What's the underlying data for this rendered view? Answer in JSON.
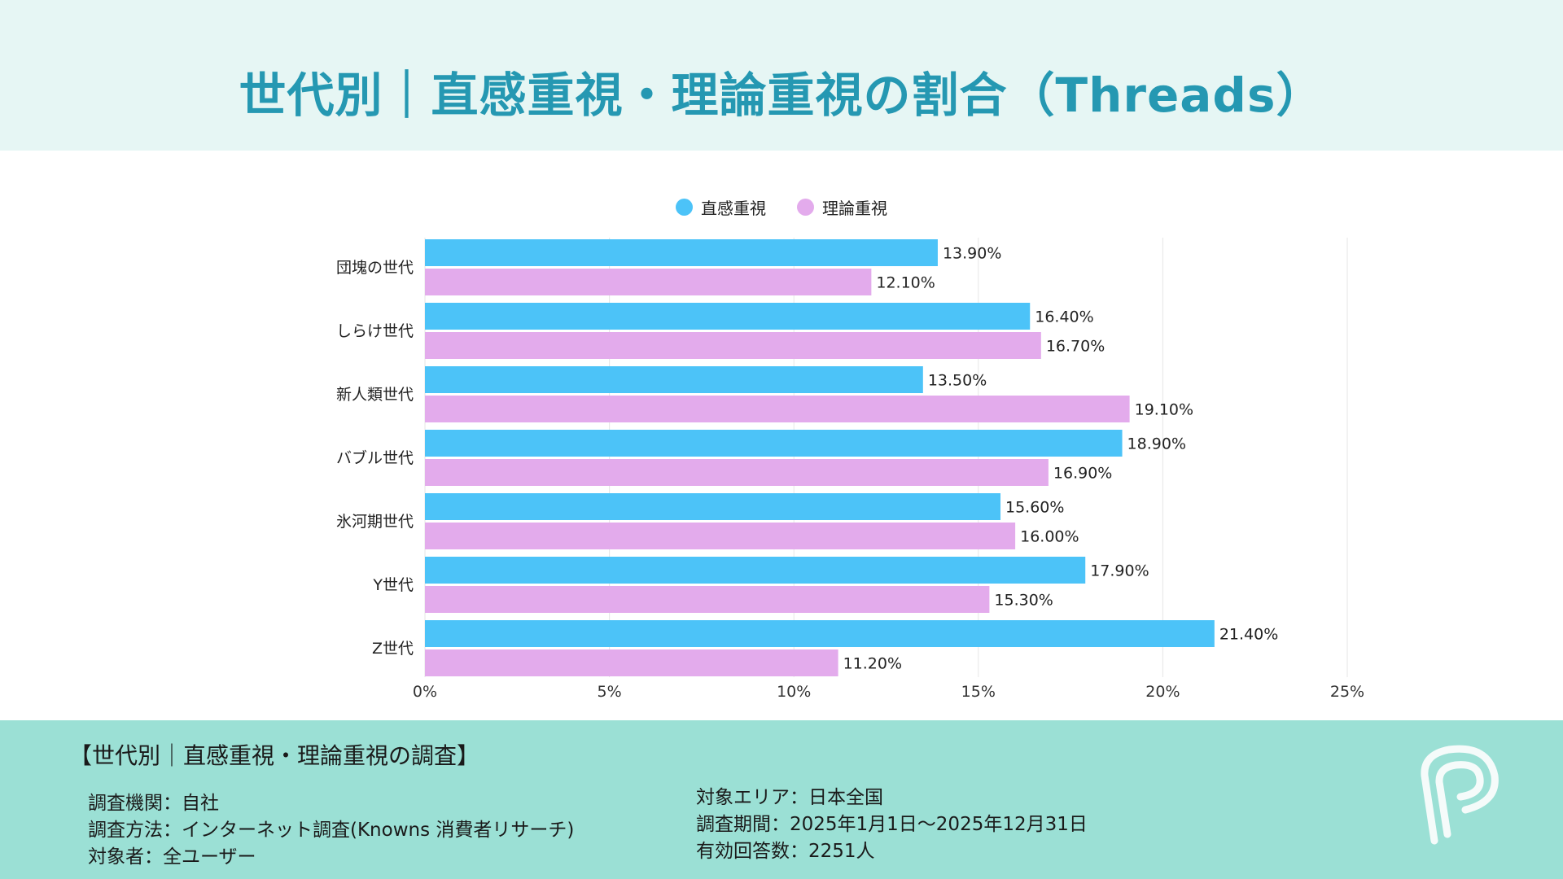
{
  "header": {
    "title": "世代別｜直感重視・理論重視の割合（Threads）"
  },
  "colors": {
    "intuition": "#4cc3f8",
    "logic": "#e3abec",
    "title": "#2598b2",
    "header_bg": "#e6f6f4",
    "footer_bg": "#9be0d5"
  },
  "chart_data": {
    "type": "bar",
    "orientation": "horizontal",
    "title": "世代別｜直感重視・理論重視の割合（Threads）",
    "categories": [
      "団塊の世代",
      "しらけ世代",
      "新人類世代",
      "バブル世代",
      "氷河期世代",
      "Y世代",
      "Z世代"
    ],
    "series": [
      {
        "name": "直感重視",
        "color": "#4cc3f8",
        "values": [
          13.9,
          16.4,
          13.5,
          18.9,
          15.6,
          17.9,
          21.4
        ],
        "labels": [
          "13.90%",
          "16.40%",
          "13.50%",
          "18.90%",
          "15.60%",
          "17.90%",
          "21.40%"
        ]
      },
      {
        "name": "理論重視",
        "color": "#e3abec",
        "values": [
          12.1,
          16.7,
          19.1,
          16.9,
          16.0,
          15.3,
          11.2
        ],
        "labels": [
          "12.10%",
          "16.70%",
          "19.10%",
          "16.90%",
          "16.00%",
          "15.30%",
          "11.20%"
        ]
      }
    ],
    "xlim": [
      0,
      25
    ],
    "xticks": [
      0,
      5,
      10,
      15,
      20,
      25
    ],
    "xtick_labels": [
      "0%",
      "5%",
      "10%",
      "15%",
      "20%",
      "25%"
    ],
    "grid": true,
    "legend": "top-center",
    "xlabel": "",
    "ylabel": ""
  },
  "footer": {
    "title": "【世代別｜直感重視・理論重視の調査】",
    "left": [
      "調査機関：自社",
      "調査方法：インターネット調査(Knowns 消費者リサーチ)",
      "対象者：全ユーザー"
    ],
    "right": [
      "対象エリア：日本全国",
      "調査期間：2025年1月1日～2025年12月31日",
      "有効回答数：2251人"
    ]
  },
  "logo": {
    "icon": "p-logo-icon"
  }
}
